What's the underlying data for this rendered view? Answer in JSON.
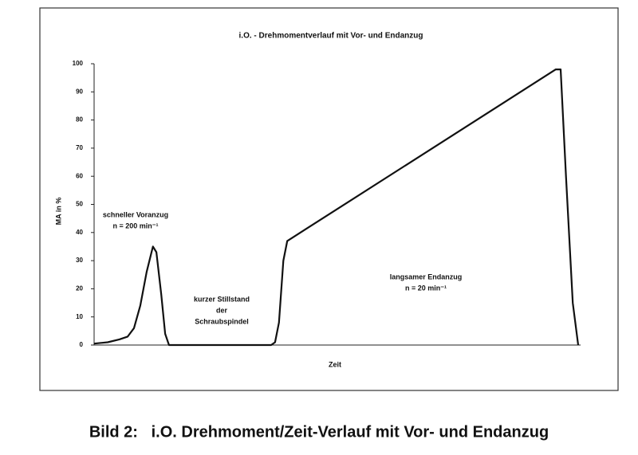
{
  "chart_data": {
    "type": "line",
    "title": "i.O. - Drehmomentverlauf mit Vor- und Endanzug",
    "x_label": "Zeit",
    "y_label": "MA in %",
    "x": [
      0,
      2.8,
      5.2,
      6.9,
      8.2,
      9.5,
      10.8,
      11.8,
      12.1,
      12.8,
      13.8,
      14.6,
      15.4,
      36.4,
      37.2,
      38.0,
      38.9,
      39.7,
      94.9,
      95.9,
      97.0,
      98.4,
      99.5
    ],
    "values": [
      0.5,
      1,
      2,
      3,
      6,
      14,
      26,
      33,
      35,
      33,
      18,
      4,
      0,
      0,
      1,
      8,
      30,
      37,
      98,
      98,
      60,
      15,
      0
    ],
    "color": "#111111",
    "xlim": [
      0,
      100
    ],
    "ylim": [
      0,
      100
    ],
    "yticks": [
      0,
      10,
      20,
      30,
      40,
      50,
      60,
      70,
      80,
      90,
      100
    ],
    "grid": false,
    "annotations": [
      [
        "schneller Voranzug",
        "n = 200 min⁻¹"
      ],
      [
        "kurzer Stillstand",
        "der",
        "Schraubspindel"
      ],
      [
        "langsamer Endanzug",
        "n = 20 min⁻¹"
      ]
    ]
  },
  "caption": "Bild 2:   i.O. Drehmoment/Zeit-Verlauf mit Vor- und Endanzug"
}
